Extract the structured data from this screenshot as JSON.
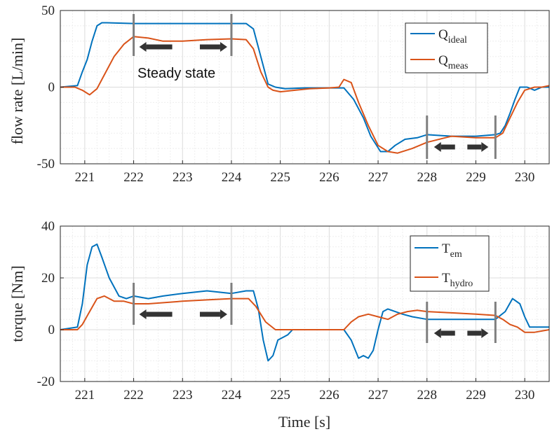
{
  "chart_data": [
    {
      "type": "line",
      "id": "flow",
      "ylabel": "flow rate [L/min]",
      "xlabel": "",
      "xlim": [
        220.5,
        230.5
      ],
      "ylim": [
        -50,
        50
      ],
      "xticks": [
        221,
        222,
        223,
        224,
        225,
        226,
        227,
        228,
        229,
        230
      ],
      "yticks": [
        -50,
        0,
        50
      ],
      "grid": true,
      "legend": "top-right",
      "series": [
        {
          "name": "Q_ideal",
          "label": "Q",
          "sub": "ideal",
          "color": "#0072BD",
          "x": [
            220.5,
            220.85,
            220.95,
            221.05,
            221.15,
            221.25,
            221.35,
            221.45,
            222,
            223,
            224,
            224.3,
            224.45,
            224.6,
            224.75,
            224.9,
            225.1,
            225.5,
            226,
            226.3,
            226.5,
            226.7,
            226.85,
            227.05,
            227.2,
            227.35,
            227.55,
            227.8,
            228,
            228.5,
            229,
            229.4,
            229.5,
            229.6,
            229.7,
            229.8,
            229.9,
            230.05,
            230.2,
            230.35,
            230.5
          ],
          "y": [
            0,
            1,
            10,
            18,
            30,
            40,
            42,
            42,
            41.5,
            41.5,
            41.5,
            41.5,
            38,
            20,
            2,
            0,
            -1,
            -0.5,
            -0.5,
            -0.5,
            -8,
            -20,
            -32,
            -42,
            -42,
            -38,
            -34,
            -33,
            -31,
            -32,
            -32,
            -31,
            -30,
            -25,
            -17,
            -8,
            0,
            0,
            -2,
            0,
            0
          ]
        },
        {
          "name": "Q_meas",
          "label": "Q",
          "sub": "meas",
          "color": "#D95319",
          "x": [
            220.5,
            220.8,
            220.95,
            221.1,
            221.25,
            221.4,
            221.6,
            221.8,
            222,
            222.3,
            222.6,
            223,
            223.5,
            224,
            224.3,
            224.45,
            224.6,
            224.75,
            224.85,
            225,
            225.3,
            225.6,
            226,
            226.2,
            226.3,
            226.45,
            226.6,
            226.8,
            227,
            227.2,
            227.4,
            227.7,
            228,
            228.5,
            229,
            229.4,
            229.55,
            229.7,
            229.85,
            230,
            230.2,
            230.35,
            230.5
          ],
          "y": [
            0,
            0,
            -2,
            -5,
            -1,
            8,
            20,
            28,
            33,
            32,
            30,
            30,
            31,
            31.5,
            31,
            25,
            10,
            0,
            -2,
            -3,
            -2,
            -1,
            -0.5,
            0,
            5,
            3,
            -10,
            -25,
            -38,
            -42,
            -43,
            -40,
            -36,
            -32,
            -33,
            -33,
            -30,
            -20,
            -10,
            -2,
            0,
            0,
            1
          ]
        }
      ],
      "annotations": [
        {
          "text": "Steady state",
          "x": 223,
          "y": 20
        }
      ],
      "markers": {
        "vlines": [
          222,
          224,
          228,
          229.4
        ]
      }
    },
    {
      "type": "line",
      "id": "torque",
      "ylabel": "torque [Nm]",
      "xlabel": "Time [s]",
      "xlim": [
        220.5,
        230.5
      ],
      "ylim": [
        -20,
        40
      ],
      "xticks": [
        221,
        222,
        223,
        224,
        225,
        226,
        227,
        228,
        229,
        230
      ],
      "yticks": [
        -20,
        0,
        20,
        40
      ],
      "grid": true,
      "legend": "top-right",
      "series": [
        {
          "name": "T_em",
          "label": "T",
          "sub": "em",
          "color": "#0072BD",
          "x": [
            220.5,
            220.85,
            220.95,
            221.05,
            221.15,
            221.25,
            221.35,
            221.5,
            221.7,
            221.85,
            222,
            222.3,
            222.6,
            223,
            223.5,
            224,
            224.3,
            224.45,
            224.55,
            224.65,
            224.75,
            224.85,
            224.95,
            225.05,
            225.15,
            225.25,
            225.4,
            225.6,
            226,
            226.3,
            226.45,
            226.6,
            226.7,
            226.8,
            226.9,
            227,
            227.1,
            227.2,
            227.35,
            227.5,
            227.7,
            228,
            228.5,
            229,
            229.4,
            229.6,
            229.75,
            229.9,
            230,
            230.1,
            230.3,
            230.5
          ],
          "y": [
            0,
            1,
            10,
            25,
            32,
            33,
            28,
            20,
            13,
            12,
            13,
            12,
            13,
            14,
            15,
            14,
            15,
            15,
            8,
            -4,
            -12,
            -10,
            -4,
            -3,
            -2,
            0,
            0,
            0,
            0,
            0,
            -4,
            -11,
            -10,
            -11,
            -8,
            0,
            7,
            8,
            7,
            6,
            5,
            4,
            4,
            4,
            4,
            7,
            12,
            10,
            5,
            1,
            1,
            1
          ]
        },
        {
          "name": "T_hydro",
          "label": "T",
          "sub": "hydro",
          "color": "#D95319",
          "x": [
            220.5,
            220.85,
            220.95,
            221.1,
            221.25,
            221.4,
            221.6,
            221.8,
            222,
            222.3,
            223,
            223.5,
            224,
            224.35,
            224.5,
            224.7,
            224.9,
            225.1,
            225.5,
            226,
            226.3,
            226.45,
            226.6,
            226.8,
            227,
            227.2,
            227.4,
            227.6,
            227.8,
            228,
            228.5,
            229,
            229.4,
            229.55,
            229.7,
            229.85,
            230,
            230.2,
            230.5
          ],
          "y": [
            0,
            0,
            2,
            7,
            12,
            13,
            11,
            11,
            10,
            10,
            11,
            11.5,
            12,
            12,
            9,
            3,
            0,
            0,
            0,
            0,
            0,
            3,
            5,
            6,
            5,
            4,
            6,
            7,
            7.5,
            7,
            6.5,
            6,
            5.5,
            4,
            2,
            1,
            -1,
            -1,
            0
          ]
        }
      ],
      "markers": {
        "vlines": [
          222,
          224,
          228,
          229.4
        ]
      }
    }
  ]
}
